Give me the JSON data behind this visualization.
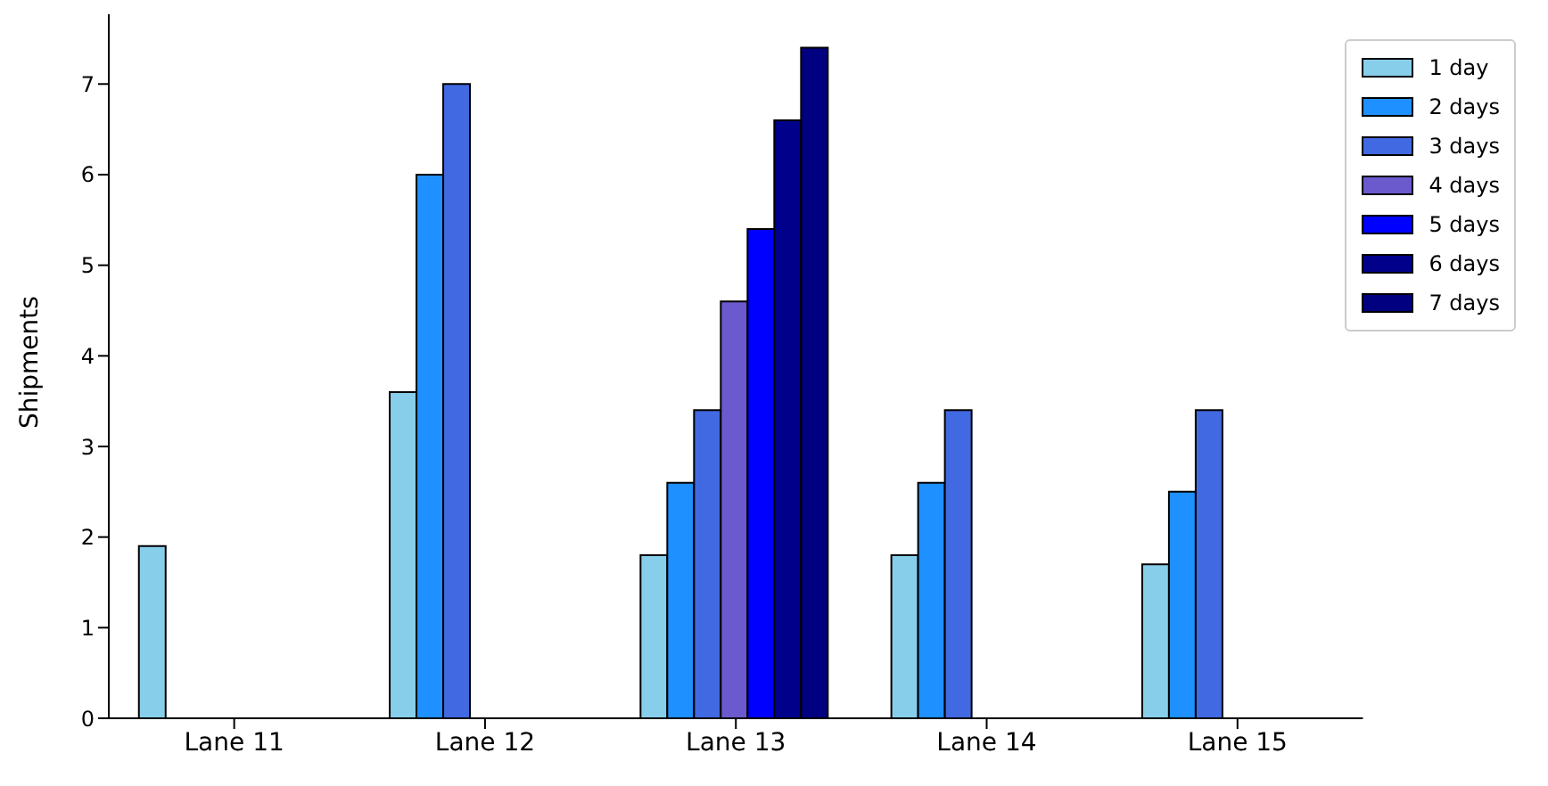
{
  "chart_data": {
    "type": "bar",
    "ylabel": "Shipments",
    "categories": [
      "Lane 11",
      "Lane 12",
      "Lane 13",
      "Lane 14",
      "Lane 15"
    ],
    "series": [
      {
        "name": "1 day",
        "color": "#87ceeb",
        "values": [
          1.9,
          3.6,
          1.8,
          1.8,
          1.7
        ]
      },
      {
        "name": "2 days",
        "color": "#1e90ff",
        "values": [
          null,
          6.0,
          2.6,
          2.6,
          2.5
        ]
      },
      {
        "name": "3 days",
        "color": "#4169e1",
        "values": [
          null,
          7.0,
          3.4,
          3.4,
          3.4
        ]
      },
      {
        "name": "4 days",
        "color": "#6a5acd",
        "values": [
          null,
          null,
          4.6,
          null,
          null
        ]
      },
      {
        "name": "5 days",
        "color": "#0000ff",
        "values": [
          null,
          null,
          5.4,
          null,
          null
        ]
      },
      {
        "name": "6 days",
        "color": "#00008b",
        "values": [
          null,
          null,
          6.6,
          null,
          null
        ]
      },
      {
        "name": "7 days",
        "color": "#000080",
        "values": [
          null,
          null,
          7.4,
          null,
          null
        ]
      }
    ],
    "ylim": [
      0,
      7.77
    ],
    "yticks": [
      0,
      1,
      2,
      3,
      4,
      5,
      6,
      7
    ],
    "grid": false,
    "legend": "top right"
  }
}
